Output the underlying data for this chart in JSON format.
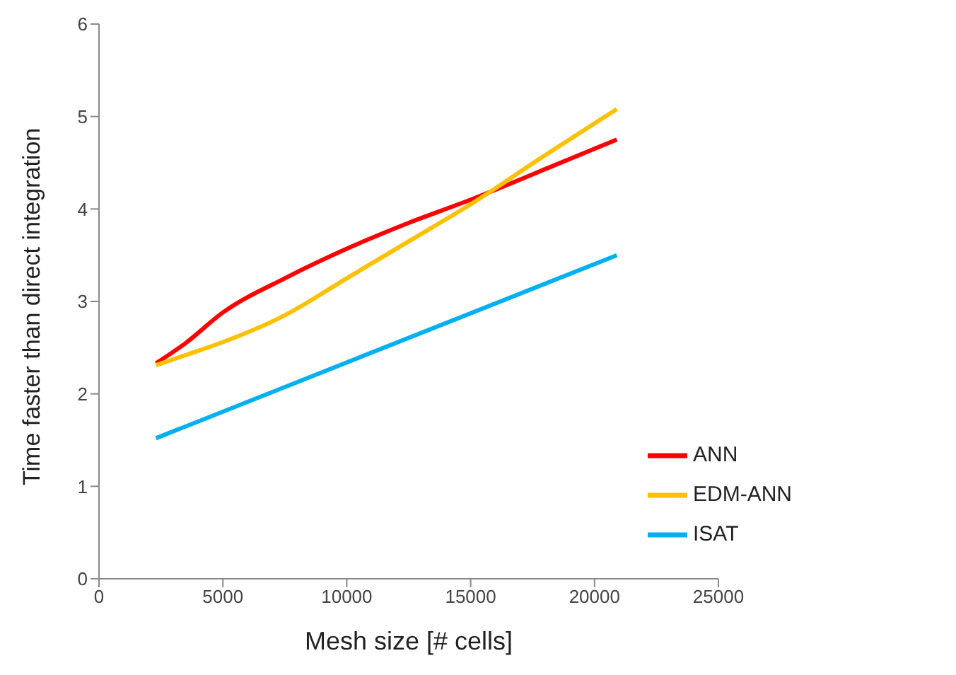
{
  "chart_data": {
    "type": "line",
    "xlabel": "Mesh size [# cells]",
    "ylabel": "Time faster than direct integration",
    "xlim": [
      0,
      25000
    ],
    "xticks": [
      0,
      5000,
      10000,
      15000,
      20000,
      25000
    ],
    "ylim": [
      0,
      6
    ],
    "yticks": [
      0,
      1,
      2,
      3,
      4,
      5,
      6
    ],
    "grid": false,
    "legend": "bottom right",
    "marker": "none",
    "line_style": "solid",
    "series": [
      {
        "name": "ANN",
        "color": "#ff0000",
        "x": [
          2300,
          3500,
          5000,
          7500,
          10000,
          12500,
          15000,
          18000,
          20900
        ],
        "values": [
          2.33,
          2.55,
          2.88,
          3.25,
          3.57,
          3.85,
          4.1,
          4.43,
          4.75
        ]
      },
      {
        "name": "EDM-ANN",
        "color": "#ffc000",
        "x": [
          2300,
          3500,
          5000,
          7500,
          10000,
          12500,
          15000,
          18000,
          20900
        ],
        "values": [
          2.31,
          2.42,
          2.56,
          2.85,
          3.25,
          3.65,
          4.05,
          4.58,
          5.08
        ]
      },
      {
        "name": "ISAT",
        "color": "#00b0f0",
        "x": [
          2300,
          20900
        ],
        "values": [
          1.52,
          3.5
        ]
      }
    ]
  }
}
